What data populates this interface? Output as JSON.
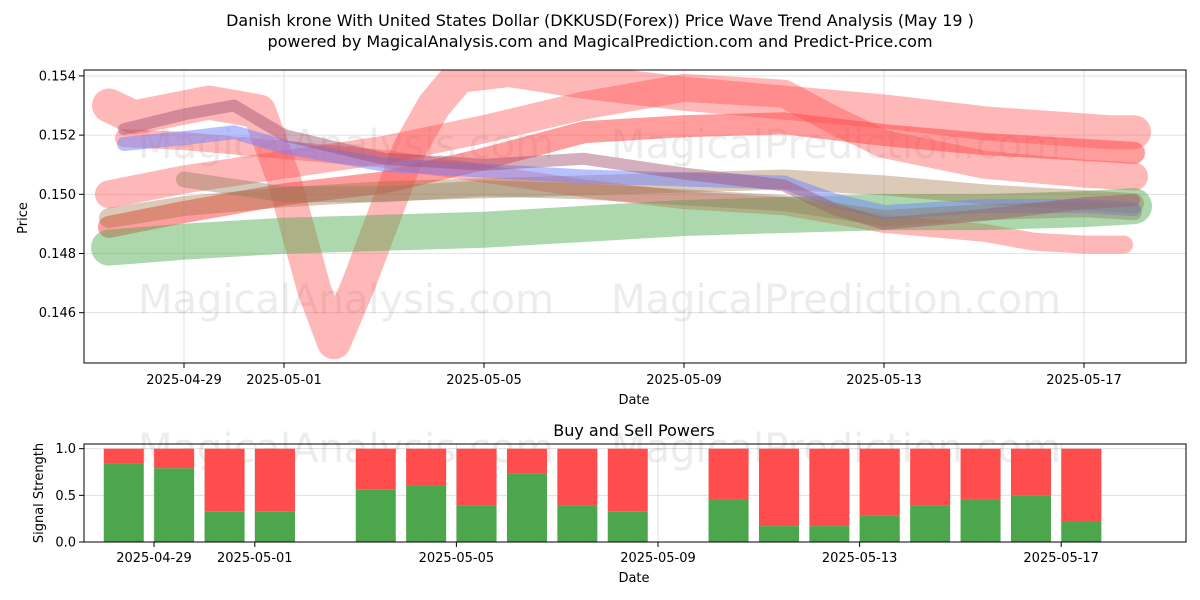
{
  "header": {
    "title_line1": "Danish krone With United States Dollar (DKKUSD(Forex)) Price Wave Trend Analysis (May 19 )",
    "title_line2": "powered by MagicalAnalysis.com and MagicalPrediction.com and Predict-Price.com"
  },
  "watermarks": {
    "left": "MagicalAnalysis.com",
    "right": "MagicalPrediction.com"
  },
  "chart_data": [
    {
      "type": "line",
      "title": "",
      "xlabel": "Date",
      "ylabel": "Price",
      "x_range_days": [
        -2.0,
        28.0
      ],
      "ylim": [
        0.1443,
        0.1542
      ],
      "x_ticks": [
        {
          "day": 0,
          "label": "2025-04-29"
        },
        {
          "day": 2,
          "label": "2025-05-01"
        },
        {
          "day": 6,
          "label": "2025-05-05"
        },
        {
          "day": 10,
          "label": "2025-05-09"
        },
        {
          "day": 14,
          "label": "2025-05-13"
        },
        {
          "day": 18,
          "label": "2025-05-17"
        }
      ],
      "y_ticks": [
        0.146,
        0.148,
        0.15,
        0.152,
        0.154
      ],
      "y_tick_labels": [
        "0.146",
        "0.148",
        "0.150",
        "0.152",
        "0.154"
      ],
      "grid": true,
      "bands": [
        {
          "color": "#ff4d4d",
          "opacity": 0.4,
          "width": 34,
          "points": [
            [
              -1.5,
              0.153
            ],
            [
              -1.0,
              0.1526
            ],
            [
              0.5,
              0.1531
            ],
            [
              1.5,
              0.1528
            ],
            [
              2.0,
              0.1505
            ],
            [
              2.6,
              0.1468
            ],
            [
              3.0,
              0.145
            ],
            [
              3.5,
              0.147
            ],
            [
              4.5,
              0.1515
            ],
            [
              5.0,
              0.153
            ],
            [
              5.5,
              0.154
            ],
            [
              6.5,
              0.1542
            ],
            [
              8.0,
              0.1538
            ],
            [
              10.0,
              0.1534
            ],
            [
              12.0,
              0.1531
            ],
            [
              14.0,
              0.1528
            ],
            [
              16.0,
              0.1524
            ],
            [
              18.5,
              0.1521
            ],
            [
              19.0,
              0.1521
            ]
          ]
        },
        {
          "color": "#ff4d4d",
          "opacity": 0.4,
          "width": 28,
          "points": [
            [
              -1.5,
              0.15
            ],
            [
              0.0,
              0.1505
            ],
            [
              2.0,
              0.151
            ],
            [
              4.0,
              0.1515
            ],
            [
              6.0,
              0.1522
            ],
            [
              8.0,
              0.153
            ],
            [
              10.0,
              0.1536
            ],
            [
              12.0,
              0.1534
            ],
            [
              13.0,
              0.1525
            ],
            [
              14.0,
              0.1517
            ],
            [
              16.0,
              0.151
            ],
            [
              18.0,
              0.1507
            ],
            [
              19.0,
              0.1506
            ]
          ]
        },
        {
          "color": "#ff4d4d",
          "opacity": 0.4,
          "width": 18,
          "points": [
            [
              -1.2,
              0.1519
            ],
            [
              0.0,
              0.1518
            ],
            [
              2.0,
              0.1515
            ],
            [
              4.0,
              0.1512
            ],
            [
              6.0,
              0.1507
            ],
            [
              8.0,
              0.1502
            ],
            [
              10.0,
              0.1498
            ],
            [
              12.0,
              0.1496
            ],
            [
              14.0,
              0.149
            ],
            [
              16.0,
              0.1487
            ],
            [
              17.0,
              0.1484
            ],
            [
              18.0,
              0.1483
            ],
            [
              18.8,
              0.1483
            ]
          ]
        },
        {
          "color": "#ff4d4d",
          "opacity": 0.55,
          "width": 22,
          "points": [
            [
              -1.5,
              0.1489
            ],
            [
              0.0,
              0.1494
            ],
            [
              2.0,
              0.15
            ],
            [
              4.0,
              0.1504
            ],
            [
              6.0,
              0.1512
            ],
            [
              8.0,
              0.1521
            ],
            [
              10.0,
              0.1523
            ],
            [
              12.0,
              0.1524
            ],
            [
              13.0,
              0.1522
            ],
            [
              14.0,
              0.152
            ],
            [
              16.0,
              0.1517
            ],
            [
              18.0,
              0.1515
            ],
            [
              19.0,
              0.1514
            ]
          ]
        },
        {
          "color": "#4aa84a",
          "opacity": 0.45,
          "width": 36,
          "points": [
            [
              -1.5,
              0.1482
            ],
            [
              0.0,
              0.1484
            ],
            [
              2.0,
              0.1486
            ],
            [
              4.0,
              0.1487
            ],
            [
              6.0,
              0.1488
            ],
            [
              8.0,
              0.149
            ],
            [
              10.0,
              0.1492
            ],
            [
              12.0,
              0.1493
            ],
            [
              14.0,
              0.1494
            ],
            [
              16.0,
              0.1494
            ],
            [
              18.0,
              0.1495
            ],
            [
              19.0,
              0.1496
            ]
          ]
        },
        {
          "color": "#996633",
          "opacity": 0.35,
          "width": 20,
          "points": [
            [
              -1.5,
              0.1492
            ],
            [
              0.0,
              0.1496
            ],
            [
              2.0,
              0.1499
            ],
            [
              4.0,
              0.1501
            ],
            [
              6.0,
              0.1502
            ],
            [
              8.0,
              0.1503
            ],
            [
              10.0,
              0.1504
            ],
            [
              12.0,
              0.1505
            ],
            [
              14.0,
              0.1503
            ],
            [
              16.0,
              0.15
            ],
            [
              18.0,
              0.1498
            ],
            [
              19.0,
              0.1497
            ]
          ]
        },
        {
          "color": "#6f84ff",
          "opacity": 0.5,
          "width": 14,
          "points": [
            [
              -1.2,
              0.1517
            ],
            [
              0.0,
              0.1519
            ],
            [
              1.0,
              0.1521
            ],
            [
              2.0,
              0.1516
            ],
            [
              4.0,
              0.151
            ],
            [
              6.0,
              0.1508
            ],
            [
              8.0,
              0.1506
            ],
            [
              10.0,
              0.1505
            ],
            [
              12.0,
              0.1504
            ],
            [
              13.0,
              0.1498
            ],
            [
              14.0,
              0.1494
            ],
            [
              16.0,
              0.1496
            ],
            [
              18.0,
              0.1496
            ],
            [
              19.0,
              0.1495
            ]
          ]
        },
        {
          "color": "#a05070",
          "opacity": 0.45,
          "width": 12,
          "points": [
            [
              -1.2,
              0.1522
            ],
            [
              0.0,
              0.1527
            ],
            [
              1.0,
              0.153
            ],
            [
              2.0,
              0.152
            ],
            [
              4.0,
              0.1512
            ],
            [
              6.0,
              0.151
            ],
            [
              8.0,
              0.1512
            ],
            [
              10.0,
              0.1507
            ],
            [
              12.0,
              0.1503
            ],
            [
              13.0,
              0.1495
            ],
            [
              14.0,
              0.149
            ],
            [
              16.0,
              0.1493
            ],
            [
              18.0,
              0.1497
            ],
            [
              19.0,
              0.1498
            ]
          ]
        },
        {
          "color": "#8a7a5a",
          "opacity": 0.4,
          "width": 16,
          "points": [
            [
              0.0,
              0.1505
            ],
            [
              2.0,
              0.15
            ],
            [
              4.0,
              0.15
            ],
            [
              6.0,
              0.1502
            ],
            [
              8.0,
              0.1501
            ],
            [
              10.0,
              0.1499
            ],
            [
              12.0,
              0.1497
            ],
            [
              14.0,
              0.1492
            ],
            [
              16.0,
              0.1494
            ],
            [
              18.0,
              0.1495
            ],
            [
              19.0,
              0.1494
            ]
          ]
        }
      ]
    },
    {
      "type": "bar",
      "title": "Buy and Sell Powers",
      "xlabel": "Date",
      "ylabel": "Signal Strength",
      "x_range_days": [
        -2.0,
        28.0
      ],
      "ylim": [
        0.0,
        1.05
      ],
      "y_ticks": [
        0.0,
        0.5,
        1.0
      ],
      "y_tick_labels": [
        "0.0",
        "0.5",
        "1.0"
      ],
      "grid": true,
      "buy_color": "#4ca64c",
      "sell_color": "#ff4c4c",
      "bars": [
        {
          "day": -0.6,
          "buy": 0.84
        },
        {
          "day": 0.4,
          "buy": 0.79
        },
        {
          "day": 1.4,
          "buy": 0.33
        },
        {
          "day": 2.4,
          "buy": 0.33
        },
        {
          "day": 4.4,
          "buy": 0.56
        },
        {
          "day": 5.4,
          "buy": 0.61
        },
        {
          "day": 6.4,
          "buy": 0.39
        },
        {
          "day": 7.4,
          "buy": 0.73
        },
        {
          "day": 8.4,
          "buy": 0.39
        },
        {
          "day": 9.4,
          "buy": 0.33
        },
        {
          "day": 11.4,
          "buy": 0.46
        },
        {
          "day": 12.4,
          "buy": 0.17
        },
        {
          "day": 13.4,
          "buy": 0.17
        },
        {
          "day": 14.4,
          "buy": 0.28
        },
        {
          "day": 15.4,
          "buy": 0.39
        },
        {
          "day": 16.4,
          "buy": 0.46
        },
        {
          "day": 17.4,
          "buy": 0.5
        },
        {
          "day": 18.4,
          "buy": 0.22
        }
      ]
    }
  ]
}
